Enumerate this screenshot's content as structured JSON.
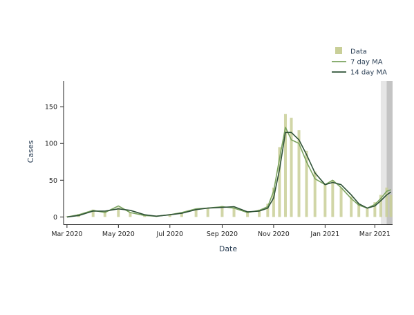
{
  "chart_data": {
    "type": "bar",
    "xlabel": "Date",
    "ylabel": "Cases",
    "ylim": [
      -10,
      185
    ],
    "xlim": [
      "2020-02-26",
      "2021-03-22"
    ],
    "x_ticks": [
      "Mar 2020",
      "May 2020",
      "Jul 2020",
      "Sep 2020",
      "Nov 2020",
      "Jan 2021",
      "Mar 2021"
    ],
    "x_tick_dates": [
      "2020-03-01",
      "2020-05-01",
      "2020-07-01",
      "2020-09-01",
      "2020-11-01",
      "2021-01-01",
      "2021-03-01"
    ],
    "y_ticks": [
      0,
      50,
      100,
      150
    ],
    "grid": false,
    "legend": "top-right",
    "shaded_regions": [
      {
        "from": "2021-03-08",
        "to": "2021-03-15",
        "color": "#e6e6e6"
      },
      {
        "from": "2021-03-15",
        "to": "2021-03-22",
        "color": "#c4c4c4"
      }
    ],
    "series": [
      {
        "name": "Data",
        "kind": "bar",
        "color": "#c9cf98",
        "dates": [
          "2020-03-01",
          "2020-03-15",
          "2020-04-01",
          "2020-04-15",
          "2020-05-01",
          "2020-05-15",
          "2020-06-01",
          "2020-06-15",
          "2020-07-01",
          "2020-07-15",
          "2020-08-01",
          "2020-08-15",
          "2020-09-01",
          "2020-09-15",
          "2020-10-01",
          "2020-10-15",
          "2020-10-25",
          "2020-11-01",
          "2020-11-08",
          "2020-11-15",
          "2020-11-22",
          "2020-12-01",
          "2020-12-10",
          "2020-12-20",
          "2021-01-01",
          "2021-01-10",
          "2021-01-20",
          "2021-02-01",
          "2021-02-10",
          "2021-02-20",
          "2021-03-01",
          "2021-03-08",
          "2021-03-15",
          "2021-03-20"
        ],
        "values": [
          1,
          4,
          10,
          8,
          13,
          6,
          3,
          2,
          4,
          6,
          10,
          12,
          15,
          13,
          8,
          10,
          18,
          40,
          95,
          140,
          135,
          118,
          90,
          62,
          45,
          50,
          40,
          28,
          18,
          12,
          20,
          30,
          40,
          30
        ]
      },
      {
        "name": "7 day MA",
        "kind": "line",
        "color": "#7aa35e",
        "dates": [
          "2020-03-01",
          "2020-03-15",
          "2020-04-01",
          "2020-04-15",
          "2020-05-01",
          "2020-05-15",
          "2020-06-01",
          "2020-06-15",
          "2020-07-01",
          "2020-07-15",
          "2020-08-01",
          "2020-08-15",
          "2020-09-01",
          "2020-09-15",
          "2020-10-01",
          "2020-10-15",
          "2020-10-25",
          "2020-11-01",
          "2020-11-08",
          "2020-11-15",
          "2020-11-22",
          "2020-12-01",
          "2020-12-10",
          "2020-12-20",
          "2021-01-01",
          "2021-01-10",
          "2021-01-20",
          "2021-02-01",
          "2021-02-10",
          "2021-02-20",
          "2021-03-01",
          "2021-03-08",
          "2021-03-15",
          "2021-03-20"
        ],
        "values": [
          0,
          3,
          9,
          6,
          15,
          6,
          2,
          1,
          3,
          6,
          11,
          12,
          14,
          12,
          6,
          9,
          14,
          35,
          80,
          122,
          105,
          100,
          75,
          52,
          44,
          50,
          40,
          25,
          16,
          12,
          17,
          25,
          35,
          37
        ]
      },
      {
        "name": "14 day MA",
        "kind": "line",
        "color": "#2f5237",
        "dates": [
          "2020-03-01",
          "2020-03-15",
          "2020-04-01",
          "2020-04-15",
          "2020-05-01",
          "2020-05-15",
          "2020-06-01",
          "2020-06-15",
          "2020-07-01",
          "2020-07-15",
          "2020-08-01",
          "2020-08-15",
          "2020-09-01",
          "2020-09-15",
          "2020-10-01",
          "2020-10-15",
          "2020-10-25",
          "2020-11-01",
          "2020-11-08",
          "2020-11-15",
          "2020-11-22",
          "2020-12-01",
          "2020-12-10",
          "2020-12-20",
          "2021-01-01",
          "2021-01-10",
          "2021-01-20",
          "2021-02-01",
          "2021-02-10",
          "2021-02-20",
          "2021-03-01",
          "2021-03-08",
          "2021-03-15",
          "2021-03-20"
        ],
        "values": [
          0,
          2,
          8,
          8,
          11,
          9,
          3,
          1,
          3,
          5,
          10,
          12,
          13,
          14,
          7,
          8,
          12,
          26,
          65,
          115,
          115,
          105,
          85,
          60,
          44,
          47,
          44,
          30,
          18,
          12,
          15,
          22,
          30,
          34
        ]
      }
    ]
  }
}
